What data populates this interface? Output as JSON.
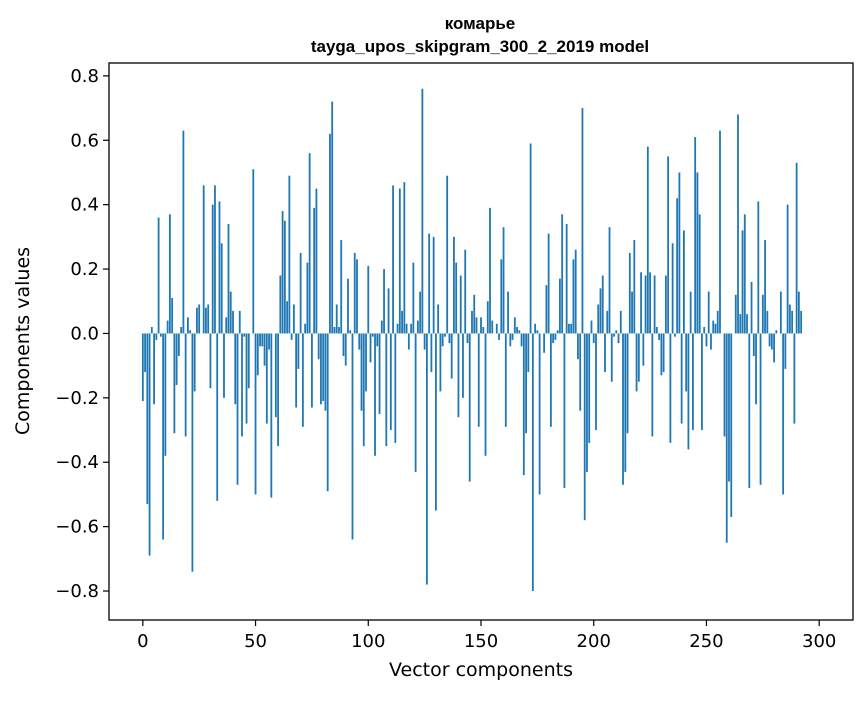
{
  "chart_data": {
    "type": "bar",
    "title_line1": "комарье",
    "title_line2": "tayga_upos_skipgram_300_2_2019 model",
    "xlabel": "Vector components",
    "ylabel": "Components values",
    "xlim": [
      -15,
      315
    ],
    "ylim": [
      -0.89,
      0.84
    ],
    "xticks": [
      0,
      50,
      100,
      150,
      200,
      250,
      300
    ],
    "xtick_labels": [
      "0",
      "50",
      "100",
      "150",
      "200",
      "250",
      "300"
    ],
    "yticks": [
      -0.8,
      -0.6,
      -0.4,
      -0.2,
      0.0,
      0.2,
      0.4,
      0.6,
      0.8
    ],
    "ytick_labels": [
      "−0.8",
      "−0.6",
      "−0.4",
      "−0.2",
      "0.0",
      "0.2",
      "0.4",
      "0.6",
      "0.8"
    ],
    "grid": false,
    "bar_color": "#1f77b4",
    "values": [
      -0.21,
      -0.12,
      -0.53,
      -0.69,
      0.02,
      -0.22,
      -0.02,
      0.36,
      -0.01,
      -0.64,
      -0.38,
      0.04,
      0.37,
      0.11,
      -0.31,
      -0.16,
      -0.07,
      0.02,
      0.63,
      -0.32,
      0.05,
      0.01,
      -0.74,
      -0.18,
      0.08,
      0.09,
      0.0,
      0.46,
      0.08,
      0.09,
      -0.17,
      0.4,
      0.46,
      -0.52,
      0.41,
      0.28,
      -0.2,
      0.05,
      0.34,
      0.13,
      0.07,
      -0.22,
      -0.47,
      0.07,
      -0.32,
      -0.01,
      -0.28,
      -0.17,
      0.0,
      0.51,
      -0.5,
      -0.13,
      -0.04,
      -0.04,
      -0.1,
      -0.28,
      -0.05,
      -0.51,
      0.0,
      -0.26,
      -0.35,
      0.18,
      0.38,
      0.35,
      0.1,
      0.49,
      -0.02,
      0.09,
      -0.23,
      -0.11,
      0.25,
      -0.29,
      0.03,
      0.22,
      0.56,
      -0.23,
      0.39,
      0.45,
      -0.08,
      -0.22,
      -0.21,
      -0.24,
      -0.49,
      0.62,
      0.72,
      0.02,
      0.09,
      0.02,
      0.29,
      -0.07,
      -0.1,
      0.17,
      0.01,
      -0.64,
      0.25,
      0.23,
      -0.05,
      -0.24,
      -0.35,
      -0.18,
      0.21,
      -0.09,
      -0.01,
      -0.38,
      -0.04,
      -0.25,
      0.04,
      0.2,
      -0.35,
      0.14,
      -0.3,
      0.46,
      -0.34,
      0.03,
      0.45,
      0.07,
      0.47,
      0.03,
      -0.05,
      0.03,
      0.22,
      -0.43,
      0.04,
      0.13,
      0.76,
      -0.05,
      -0.78,
      0.31,
      -0.12,
      0.3,
      -0.55,
      0.09,
      -0.18,
      -0.04,
      -0.01,
      0.49,
      -0.03,
      -0.14,
      0.3,
      0.22,
      -0.26,
      0.18,
      -0.2,
      0.26,
      -0.03,
      -0.46,
      0.07,
      0.12,
      0.05,
      -0.29,
      0.05,
      0.02,
      -0.38,
      0.1,
      0.39,
      0.04,
      0.0,
      0.03,
      -0.02,
      0.23,
      0.33,
      -0.29,
      0.13,
      -0.04,
      -0.02,
      0.05,
      0.02,
      0.01,
      -0.04,
      -0.44,
      -0.31,
      -0.12,
      0.59,
      -0.8,
      0.03,
      0.01,
      -0.5,
      0.0,
      -0.06,
      0.15,
      0.31,
      -0.29,
      -0.03,
      -0.02,
      0.01,
      0.17,
      0.37,
      -0.48,
      0.34,
      0.03,
      0.03,
      0.23,
      0.26,
      -0.08,
      -0.24,
      0.7,
      -0.58,
      -0.43,
      -0.34,
      0.04,
      -0.03,
      -0.3,
      0.09,
      0.14,
      0.18,
      -0.12,
      0.07,
      0.33,
      -0.15,
      -0.01,
      0.01,
      -0.03,
      0.07,
      -0.47,
      -0.43,
      -0.31,
      0.25,
      0.13,
      0.29,
      -0.18,
      -0.15,
      0.19,
      -0.1,
      0.18,
      0.58,
      0.19,
      -0.32,
      0.18,
      0.02,
      -0.02,
      -0.13,
      -0.12,
      0.18,
      0.55,
      -0.34,
      0.28,
      -0.01,
      0.42,
      0.5,
      -0.28,
      0.32,
      -0.18,
      -0.36,
      0.13,
      -0.3,
      0.61,
      0.5,
      0.37,
      -0.3,
      0.02,
      -0.04,
      0.13,
      -0.05,
      0.04,
      0.03,
      0.07,
      0.63,
      0.0,
      -0.32,
      -0.65,
      -0.46,
      -0.57,
      0.0,
      0.12,
      0.68,
      0.06,
      0.32,
      0.37,
      0.06,
      -0.48,
      0.16,
      -0.07,
      -0.22,
      0.41,
      -0.47,
      0.12,
      0.29,
      0.07,
      -0.04,
      -0.05,
      -0.09,
      0.01,
      0.0,
      0.13,
      -0.5,
      -0.11,
      0.4,
      0.09,
      0.07,
      -0.28,
      0.53,
      0.13,
      0.07
    ]
  }
}
